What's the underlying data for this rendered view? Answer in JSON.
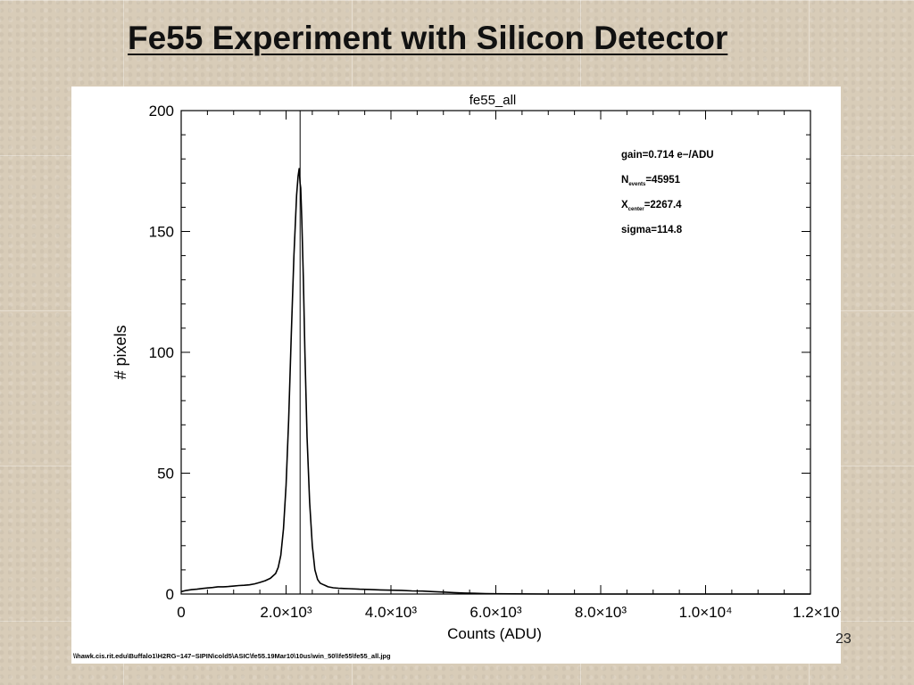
{
  "slide": {
    "title": "Fe55 Experiment with Silicon Detector",
    "page_number": "23"
  },
  "chart_data": {
    "type": "line",
    "title": "fe55_all",
    "xlabel": "Counts (ADU)",
    "ylabel": "# pixels",
    "xlim": [
      0,
      12000
    ],
    "ylim": [
      0,
      200
    ],
    "x_ticks": [
      0,
      2000,
      4000,
      6000,
      8000,
      10000,
      12000
    ],
    "x_tick_labels": [
      "0",
      "2.0×10³",
      "4.0×10³",
      "6.0×10³",
      "8.0×10³",
      "1.0×10⁴",
      "1.2×10⁴"
    ],
    "y_ticks": [
      0,
      50,
      100,
      150,
      200
    ],
    "y_tick_labels": [
      "0",
      "50",
      "100",
      "150",
      "200"
    ],
    "grid": false,
    "vertical_marker_x": 2267.4,
    "annotations": [
      {
        "label": "gain",
        "text": "gain=0.714 e−/ADU"
      },
      {
        "label": "N",
        "sub": "events",
        "text": "=45951"
      },
      {
        "label": "X",
        "sub": "center",
        "text": "=2267.4"
      },
      {
        "label": "sigma",
        "text": "sigma=114.8"
      }
    ],
    "series": [
      {
        "x": [
          0,
          100,
          200,
          300,
          400,
          500,
          600,
          700,
          800,
          900,
          1000,
          1100,
          1200,
          1300,
          1400,
          1500,
          1600,
          1700,
          1800,
          1850,
          1900,
          1950,
          2000,
          2050,
          2100,
          2150,
          2200,
          2230,
          2250,
          2267,
          2280,
          2300,
          2330,
          2360,
          2400,
          2450,
          2500,
          2550,
          2600,
          2650,
          2700,
          2750,
          2800,
          2900,
          3000,
          3100,
          3200,
          3400,
          3600,
          3800,
          4000,
          4200,
          4400,
          4600,
          4800,
          5000,
          5200,
          5400,
          5600,
          5800,
          6000,
          7000,
          8000,
          10000,
          12000
        ],
        "y": [
          1,
          1.5,
          1.8,
          2,
          2.3,
          2.5,
          2.7,
          3,
          3,
          3.1,
          3.3,
          3.5,
          3.6,
          3.8,
          4.2,
          4.8,
          5.5,
          6.5,
          8.5,
          11,
          16,
          27,
          45,
          72,
          108,
          140,
          165,
          173,
          176,
          170,
          168,
          155,
          130,
          100,
          65,
          38,
          20,
          10,
          6,
          4.5,
          4,
          3.5,
          3,
          2.6,
          2.4,
          2.3,
          2.2,
          2,
          1.9,
          1.7,
          1.6,
          1.5,
          1.3,
          1.2,
          1,
          0.8,
          0.6,
          0.4,
          0.3,
          0.2,
          0.1,
          0,
          0,
          0,
          0
        ]
      }
    ],
    "footer_path": "\\\\hawk.cis.rit.edu\\Buffalo1\\H2RG−147−SIPIN\\cold5\\ASIC\\fe55.19Mar10\\10us\\win_50\\\\fe55\\fe55_all.jpg"
  }
}
